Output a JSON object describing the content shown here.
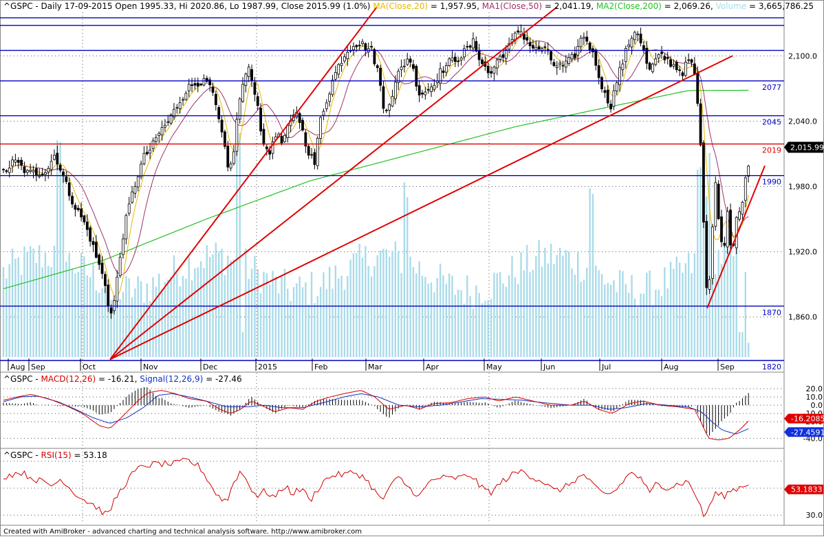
{
  "header": {
    "prefix": "^GSPC - Daily 17-09-2015 Open 1995.33, Hi 2020.86, Lo 1987.99, Close 2015.99 (1.0%) ",
    "ma20": "MA(Close,20)",
    "ma20_val": " = 1,957.95, ",
    "ma1": "MA1(Close,50)",
    "ma1_val": " = 2,041.19, ",
    "ma2": "MA2(Close,200)",
    "ma2_val": " = 2,069.26, ",
    "vol": "Volume",
    "vol_val": " = 3,665,786.25"
  },
  "macd_header": {
    "prefix": "^GSPC - ",
    "macd": "MACD(12,26)",
    "macd_val": " = -16.21, ",
    "signal": "Signal(12,26,9)",
    "signal_val": " = -27.46"
  },
  "rsi_header": {
    "prefix": "^GSPC - ",
    "rsi": "RSI(15)",
    "rsi_val": " = 53.18"
  },
  "footer": "Created with AmiBroker - advanced charting and technical analysis software. http://www.amibroker.com",
  "colors": {
    "price": "#000000",
    "ma20": "#e8b800",
    "ma1": "#a0306a",
    "ma2": "#22c022",
    "volume": "#aadbe9",
    "hline": "#0000c0",
    "trend": "#e00000",
    "macd": "#d00000",
    "signal": "#1030c0",
    "rsi": "#d00000"
  },
  "chart_data": [
    {
      "type": "candlestick",
      "name": "price",
      "ylim": [
        1820,
        2140
      ],
      "y_ticks": [
        "2,100.0",
        "2,040.0",
        "1,980.0",
        "1,920.0",
        "1,860.0"
      ],
      "x_labels": [
        "Aug",
        "Sep",
        "Oct",
        "Nov",
        "Dec",
        "2015",
        "Feb",
        "Mar",
        "Apr",
        "May",
        "Jun",
        "Jul",
        "Aug",
        "Sep"
      ],
      "last_close": "2,015.99",
      "horizontal_lines": [
        {
          "value": 2135,
          "label": "",
          "color": "#0000c0"
        },
        {
          "value": 2128,
          "label": "",
          "color": "#0000c0"
        },
        {
          "value": 2105,
          "label": "",
          "color": "#0000c0"
        },
        {
          "value": 2077,
          "label": "2077",
          "color": "#0000c0"
        },
        {
          "value": 2045,
          "label": "2045",
          "color": "#0000c0"
        },
        {
          "value": 2019,
          "label": "2019",
          "color": "#e00000"
        },
        {
          "value": 1990,
          "label": "1990",
          "color": "#0000c0"
        },
        {
          "value": 1870,
          "label": "1870",
          "color": "#0000c0"
        },
        {
          "value": 1820,
          "label": "1820",
          "color": "#0000c0"
        }
      ],
      "anchors": [
        [
          0,
          1990
        ],
        [
          12,
          1997
        ],
        [
          20,
          2003
        ],
        [
          28,
          2000
        ],
        [
          40,
          1992
        ],
        [
          55,
          1993
        ],
        [
          68,
          1995
        ],
        [
          80,
          2010
        ],
        [
          90,
          1992
        ],
        [
          100,
          1975
        ],
        [
          110,
          1960
        ],
        [
          120,
          1950
        ],
        [
          130,
          1935
        ],
        [
          140,
          1915
        ],
        [
          148,
          1900
        ],
        [
          153,
          1890
        ],
        [
          158,
          1870
        ],
        [
          162,
          1862
        ],
        [
          167,
          1878
        ],
        [
          173,
          1908
        ],
        [
          180,
          1940
        ],
        [
          190,
          1968
        ],
        [
          200,
          1990
        ],
        [
          210,
          2008
        ],
        [
          220,
          2015
        ],
        [
          232,
          2030
        ],
        [
          245,
          2040
        ],
        [
          258,
          2055
        ],
        [
          272,
          2070
        ],
        [
          290,
          2077
        ],
        [
          305,
          2073
        ],
        [
          315,
          2050
        ],
        [
          325,
          2020
        ],
        [
          333,
          1990
        ],
        [
          340,
          2015
        ],
        [
          348,
          2060
        ],
        [
          360,
          2090
        ],
        [
          372,
          2065
        ],
        [
          380,
          2030
        ],
        [
          390,
          2005
        ],
        [
          400,
          2030
        ],
        [
          410,
          2020
        ],
        [
          420,
          2035
        ],
        [
          432,
          2050
        ],
        [
          442,
          2025
        ],
        [
          450,
          2010
        ],
        [
          458,
          2000
        ],
        [
          465,
          2040
        ],
        [
          475,
          2060
        ],
        [
          485,
          2080
        ],
        [
          495,
          2095
        ],
        [
          505,
          2105
        ],
        [
          515,
          2112
        ],
        [
          528,
          2110
        ],
        [
          540,
          2105
        ],
        [
          550,
          2085
        ],
        [
          558,
          2050
        ],
        [
          568,
          2060
        ],
        [
          580,
          2085
        ],
        [
          595,
          2100
        ],
        [
          610,
          2065
        ],
        [
          625,
          2070
        ],
        [
          640,
          2085
        ],
        [
          655,
          2095
        ],
        [
          670,
          2100
        ],
        [
          688,
          2112
        ],
        [
          700,
          2095
        ],
        [
          712,
          2082
        ],
        [
          725,
          2098
        ],
        [
          740,
          2108
        ],
        [
          755,
          2125
        ],
        [
          765,
          2115
        ],
        [
          778,
          2105
        ],
        [
          790,
          2108
        ],
        [
          805,
          2092
        ],
        [
          820,
          2090
        ],
        [
          835,
          2100
        ],
        [
          848,
          2120
        ],
        [
          858,
          2108
        ],
        [
          868,
          2090
        ],
        [
          878,
          2065
        ],
        [
          888,
          2055
        ],
        [
          898,
          2080
        ],
        [
          908,
          2100
        ],
        [
          918,
          2118
        ],
        [
          926,
          2125
        ],
        [
          935,
          2105
        ],
        [
          944,
          2085
        ],
        [
          952,
          2095
        ],
        [
          962,
          2100
        ],
        [
          972,
          2095
        ],
        [
          982,
          2090
        ],
        [
          992,
          2085
        ],
        [
          1003,
          2098
        ],
        [
          1012,
          2075
        ],
        [
          1018,
          2025
        ],
        [
          1022,
          1960
        ],
        [
          1026,
          1900
        ],
        [
          1030,
          1870
        ],
        [
          1035,
          1935
        ],
        [
          1040,
          1990
        ],
        [
          1046,
          1940
        ],
        [
          1052,
          1920
        ],
        [
          1058,
          1960
        ],
        [
          1064,
          1910
        ],
        [
          1070,
          1948
        ],
        [
          1076,
          1958
        ],
        [
          1082,
          1978
        ],
        [
          1088,
          2002
        ],
        [
          1092,
          2016
        ]
      ],
      "volume_spikes": [
        [
          163,
          0.16
        ],
        [
          352,
          0.07
        ],
        [
          1028,
          0.2
        ],
        [
          1078,
          0.07
        ],
        [
          1088,
          0.04
        ]
      ]
    },
    {
      "type": "line",
      "name": "macd",
      "y_ticks": [
        "20.0",
        "10.0",
        "0.0",
        "-10.0",
        "-20.0",
        "-40.0"
      ],
      "ylim": [
        -48,
        25
      ],
      "last_values": {
        "macd": "-16.2085",
        "signal": "-27.4591"
      },
      "macd_anchors": [
        [
          0,
          5
        ],
        [
          25,
          10
        ],
        [
          45,
          13
        ],
        [
          70,
          8
        ],
        [
          95,
          0
        ],
        [
          120,
          -10
        ],
        [
          145,
          -25
        ],
        [
          160,
          -28
        ],
        [
          180,
          -12
        ],
        [
          200,
          5
        ],
        [
          215,
          15
        ],
        [
          235,
          18
        ],
        [
          255,
          14
        ],
        [
          275,
          8
        ],
        [
          300,
          5
        ],
        [
          320,
          -5
        ],
        [
          335,
          -10
        ],
        [
          350,
          -5
        ],
        [
          365,
          5
        ],
        [
          380,
          0
        ],
        [
          400,
          -8
        ],
        [
          420,
          -3
        ],
        [
          440,
          -5
        ],
        [
          460,
          5
        ],
        [
          480,
          10
        ],
        [
          500,
          14
        ],
        [
          525,
          18
        ],
        [
          545,
          10
        ],
        [
          565,
          -5
        ],
        [
          590,
          0
        ],
        [
          610,
          -5
        ],
        [
          630,
          2
        ],
        [
          655,
          3
        ],
        [
          680,
          8
        ],
        [
          705,
          10
        ],
        [
          725,
          5
        ],
        [
          750,
          10
        ],
        [
          775,
          5
        ],
        [
          800,
          0
        ],
        [
          830,
          0
        ],
        [
          850,
          5
        ],
        [
          870,
          -5
        ],
        [
          890,
          -10
        ],
        [
          915,
          2
        ],
        [
          935,
          5
        ],
        [
          960,
          0
        ],
        [
          985,
          -2
        ],
        [
          1010,
          -5
        ],
        [
          1020,
          -22
        ],
        [
          1030,
          -40
        ],
        [
          1045,
          -42
        ],
        [
          1060,
          -40
        ],
        [
          1075,
          -30
        ],
        [
          1092,
          -16
        ]
      ],
      "signal_anchors": [
        [
          0,
          3
        ],
        [
          30,
          10
        ],
        [
          55,
          11
        ],
        [
          85,
          4
        ],
        [
          110,
          -5
        ],
        [
          135,
          -15
        ],
        [
          160,
          -22
        ],
        [
          185,
          -15
        ],
        [
          210,
          -2
        ],
        [
          230,
          12
        ],
        [
          250,
          14
        ],
        [
          275,
          10
        ],
        [
          300,
          5
        ],
        [
          330,
          -2
        ],
        [
          360,
          -2
        ],
        [
          385,
          0
        ],
        [
          410,
          -3
        ],
        [
          440,
          -3
        ],
        [
          470,
          3
        ],
        [
          500,
          10
        ],
        [
          525,
          14
        ],
        [
          550,
          10
        ],
        [
          580,
          0
        ],
        [
          610,
          -2
        ],
        [
          640,
          0
        ],
        [
          670,
          4
        ],
        [
          700,
          8
        ],
        [
          730,
          7
        ],
        [
          760,
          6
        ],
        [
          790,
          3
        ],
        [
          830,
          0
        ],
        [
          860,
          0
        ],
        [
          885,
          -5
        ],
        [
          910,
          -3
        ],
        [
          940,
          2
        ],
        [
          970,
          0
        ],
        [
          1000,
          -2
        ],
        [
          1020,
          -8
        ],
        [
          1035,
          -20
        ],
        [
          1050,
          -30
        ],
        [
          1070,
          -35
        ],
        [
          1092,
          -27
        ]
      ]
    },
    {
      "type": "line",
      "name": "rsi",
      "y_ticks": [
        "30.0"
      ],
      "ylim": [
        25,
        75
      ],
      "last_value": "53.1833",
      "anchors": [
        [
          0,
          58
        ],
        [
          15,
          60
        ],
        [
          30,
          62
        ],
        [
          45,
          58
        ],
        [
          60,
          55
        ],
        [
          75,
          52
        ],
        [
          90,
          57
        ],
        [
          105,
          48
        ],
        [
          120,
          42
        ],
        [
          135,
          38
        ],
        [
          150,
          32
        ],
        [
          158,
          30
        ],
        [
          165,
          40
        ],
        [
          180,
          52
        ],
        [
          195,
          62
        ],
        [
          210,
          67
        ],
        [
          230,
          68
        ],
        [
          255,
          68
        ],
        [
          272,
          71
        ],
        [
          290,
          66
        ],
        [
          300,
          58
        ],
        [
          315,
          45
        ],
        [
          330,
          40
        ],
        [
          340,
          55
        ],
        [
          350,
          63
        ],
        [
          365,
          50
        ],
        [
          375,
          44
        ],
        [
          385,
          48
        ],
        [
          400,
          43
        ],
        [
          415,
          52
        ],
        [
          425,
          46
        ],
        [
          440,
          50
        ],
        [
          450,
          40
        ],
        [
          460,
          48
        ],
        [
          470,
          55
        ],
        [
          485,
          60
        ],
        [
          500,
          60
        ],
        [
          515,
          62
        ],
        [
          530,
          58
        ],
        [
          545,
          48
        ],
        [
          555,
          40
        ],
        [
          565,
          50
        ],
        [
          580,
          58
        ],
        [
          595,
          50
        ],
        [
          610,
          44
        ],
        [
          625,
          55
        ],
        [
          640,
          58
        ],
        [
          655,
          57
        ],
        [
          670,
          58
        ],
        [
          685,
          60
        ],
        [
          700,
          50
        ],
        [
          715,
          47
        ],
        [
          730,
          55
        ],
        [
          745,
          60
        ],
        [
          760,
          63
        ],
        [
          775,
          58
        ],
        [
          790,
          55
        ],
        [
          805,
          48
        ],
        [
          820,
          50
        ],
        [
          835,
          56
        ],
        [
          850,
          60
        ],
        [
          865,
          50
        ],
        [
          880,
          45
        ],
        [
          895,
          48
        ],
        [
          910,
          58
        ],
        [
          920,
          62
        ],
        [
          935,
          55
        ],
        [
          945,
          45
        ],
        [
          955,
          55
        ],
        [
          970,
          50
        ],
        [
          985,
          53
        ],
        [
          1000,
          55
        ],
        [
          1012,
          45
        ],
        [
          1020,
          33
        ],
        [
          1025,
          28
        ],
        [
          1032,
          38
        ],
        [
          1040,
          46
        ],
        [
          1052,
          44
        ],
        [
          1062,
          48
        ],
        [
          1072,
          50
        ],
        [
          1082,
          52
        ],
        [
          1092,
          55
        ]
      ]
    }
  ]
}
